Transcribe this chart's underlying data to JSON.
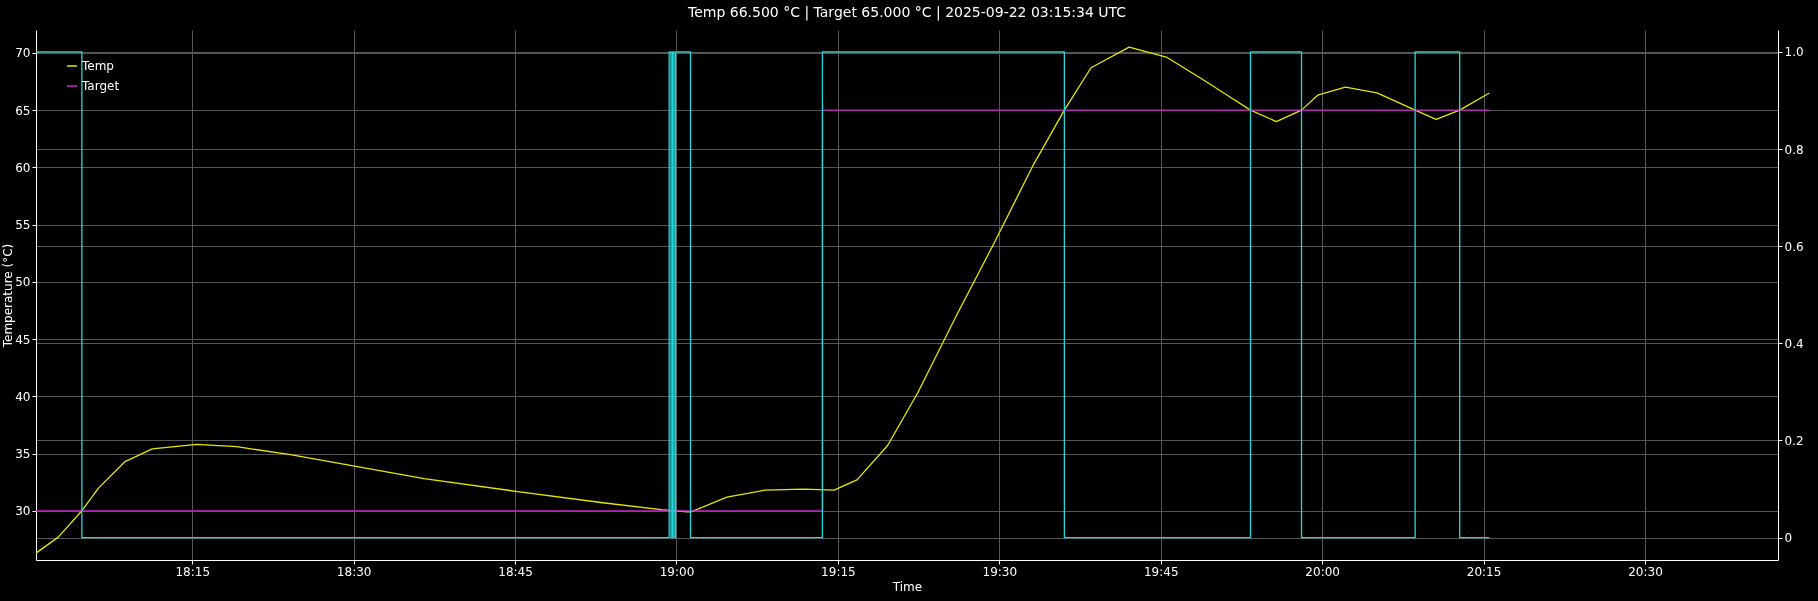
{
  "chart_data": {
    "type": "line",
    "title": "Temp 66.500 °C | Target 65.000 °C | 2025-09-22 03:15:34 UTC",
    "xlabel": "Time",
    "ylabel": "Temperature (°C)",
    "xlim": [
      18.008,
      20.706
    ],
    "xticks": [
      {
        "value": 18.25,
        "label": "18:15"
      },
      {
        "value": 18.5,
        "label": "18:30"
      },
      {
        "value": 18.75,
        "label": "18:45"
      },
      {
        "value": 19,
        "label": "19:00"
      },
      {
        "value": 19.25,
        "label": "19:15"
      },
      {
        "value": 19.5,
        "label": "19:30"
      },
      {
        "value": 19.75,
        "label": "19:45"
      },
      {
        "value": 20,
        "label": "20:00"
      },
      {
        "value": 20.25,
        "label": "20:15"
      },
      {
        "value": 20.5,
        "label": "20:30"
      }
    ],
    "ylim": [
      25.7,
      72
    ],
    "yticks": [
      30,
      35,
      40,
      45,
      50,
      55,
      60,
      65,
      70
    ],
    "y2lim": [
      -0.046,
      1.045
    ],
    "y2ticks": [
      0,
      {
        "value": 0.2,
        "label": "0.2"
      },
      {
        "value": 0.4,
        "label": "0.4"
      },
      {
        "value": 0.6,
        "label": "0.6"
      },
      {
        "value": 0.8,
        "label": "0.8"
      },
      {
        "value": 1,
        "label": "1.0"
      }
    ],
    "grid": true,
    "legend": "top left",
    "series": [
      {
        "name": "Temp",
        "color": "#e6e600",
        "x": [
          18.008,
          18.0425,
          18.079,
          18.105,
          18.146,
          18.188,
          18.257,
          18.319,
          18.402,
          18.5015,
          18.609,
          18.751,
          18.886,
          18.976,
          19.017,
          19.0225,
          19.078,
          19.137,
          19.1965,
          19.244,
          19.2795,
          19.327,
          19.3745,
          19.434,
          19.493,
          19.5525,
          19.6007,
          19.642,
          19.701,
          19.76,
          19.82,
          19.853,
          19.889,
          19.929,
          19.968,
          19.993,
          20.036,
          20.085,
          20.144,
          20.1765,
          20.213,
          20.259
        ],
        "values": [
          26.3,
          27.7,
          30.0,
          32.0,
          34.3,
          35.4,
          35.8,
          35.6,
          34.9,
          33.9,
          32.8,
          31.7,
          30.7,
          30.1,
          29.9,
          29.9,
          31.2,
          31.8,
          31.9,
          31.8,
          32.7,
          35.7,
          40.4,
          47.1,
          53.5,
          60.2,
          65.0,
          68.7,
          70.5,
          69.6,
          67.5,
          66.3,
          65.0,
          64.0,
          65.0,
          66.3,
          67.0,
          66.5,
          65.0,
          64.2,
          65.0,
          66.5
        ]
      },
      {
        "name": "Target",
        "type": "step",
        "color": "#cc22cc",
        "x": [
          18.008,
          19.226,
          20.259
        ],
        "values": [
          30,
          65,
          65
        ]
      },
      {
        "type": "step",
        "axis": "y2",
        "color": "#22d8d8",
        "x": [
          18.008,
          18.079,
          18.9887,
          18.9915,
          18.9938,
          18.9961,
          18.9985,
          19.0217,
          19.226,
          19.6007,
          19.889,
          19.968,
          20.144,
          20.213,
          20.259
        ],
        "values": [
          1,
          0,
          1,
          0,
          1,
          0,
          1,
          0,
          1,
          0,
          1,
          0,
          1,
          0,
          0
        ]
      }
    ]
  }
}
